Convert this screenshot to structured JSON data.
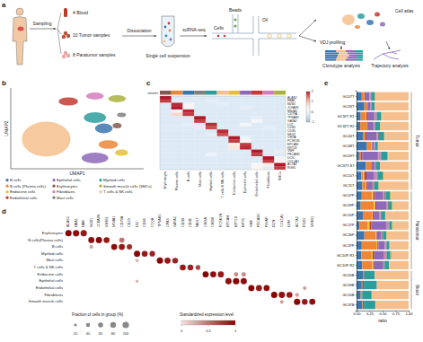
{
  "panel_labels": [
    "a",
    "b",
    "c",
    "d",
    "e"
  ],
  "schematic": {
    "sampling": "Sampling",
    "blood": "4 Blood",
    "tumor": "10 Tumor samples",
    "paratumor": "8 Paratumor samples",
    "dissociation": "Dissociation",
    "suspension": "Single cell suspension",
    "scrnaseq": "scRNA-seq",
    "beads": "Beads",
    "cells": "Cells",
    "oil": "Oil",
    "cell_atlas": "Cell atlas",
    "vdj": "VDJ profiling",
    "clonotype": "Clonotype analysis",
    "trajectory": "Trajectory analysis"
  },
  "chart_data": [
    {
      "type": "scatter",
      "x_label": "UMAP1",
      "y_label": "UMAP2",
      "xlim": [
        -15,
        15
      ],
      "ylim": [
        -15,
        15
      ],
      "tick_labels": false,
      "legend": "bottom",
      "clusters": [
        {
          "name": "B cells",
          "color": "#3b75af",
          "x": 6,
          "y": 0,
          "rx": 2,
          "ry": 1.8
        },
        {
          "name": "B cells (Plasma cells)",
          "color": "#ef8636",
          "x": 7,
          "y": -6,
          "rx": 2.2,
          "ry": 1.6
        },
        {
          "name": "Endocrine cells",
          "color": "#e6c229",
          "x": 10,
          "y": -9,
          "rx": 1.5,
          "ry": 1.2
        },
        {
          "name": "Endothelial cells",
          "color": "#c53a32",
          "x": -2,
          "y": 10,
          "rx": 2.2,
          "ry": 1.5
        },
        {
          "name": "Epithelial cells",
          "color": "#8d69b8",
          "x": 4,
          "y": -11,
          "rx": 3,
          "ry": 2
        },
        {
          "name": "Erythrocytes",
          "color": "#84584e",
          "x": 9,
          "y": 1,
          "rx": 1,
          "ry": 1
        },
        {
          "name": "Fibroblasts",
          "color": "#d57dbf",
          "x": 4,
          "y": 12,
          "rx": 2,
          "ry": 1.3
        },
        {
          "name": "Mast cells",
          "color": "#7f7f7f",
          "x": 10,
          "y": 5,
          "rx": 1,
          "ry": 0.8
        },
        {
          "name": "Myeloid cells",
          "color": "#2d9c9c",
          "x": 4,
          "y": 4,
          "rx": 2.5,
          "ry": 2
        },
        {
          "name": "Smooth muscle cells (SMCs)",
          "color": "#aab23d",
          "x": 9,
          "y": 11,
          "rx": 2,
          "ry": 1.3
        },
        {
          "name": "T cells & NK cells",
          "color": "#f5c08e",
          "x": -7,
          "y": -4,
          "rx": 5.5,
          "ry": 6.5
        }
      ]
    },
    {
      "type": "heatmap",
      "band_label": "cluster",
      "categories": [
        "Erythrocyte",
        "Plasma cells",
        "B cells",
        "Mast cells",
        "Myeloid cells",
        "T cells & NK cells",
        "Endocrine cells",
        "Epithelial cells",
        "Endothelial cells",
        "Fibroblasts",
        "SMCs"
      ],
      "colors": [
        "#84584e",
        "#ef8636",
        "#3b75af",
        "#7f7f7f",
        "#2d9c9c",
        "#f5c08e",
        "#e6c229",
        "#8d69b8",
        "#c53a32",
        "#d57dbf",
        "#aab23d"
      ],
      "genes": [
        "ALAS2",
        "HBA1",
        "MZB1",
        "JCHAIN",
        "MS4A1",
        "CD79A",
        "TPSAB1",
        "GATA2",
        "LYZ",
        "CD68",
        "CD3D",
        "NKG7",
        "CHGA",
        "PCSK1N",
        "EPCAM",
        "KRT18",
        "VWF",
        "PECAM1",
        "DCN",
        "COL1A1",
        "ACTA2",
        "RGS5"
      ],
      "cells": [
        [
          2.0,
          -0.3,
          -0.3,
          -0.3,
          -0.3,
          -0.3,
          -0.3,
          -0.3,
          -0.3,
          -0.3,
          -0.3
        ],
        [
          1.8,
          -0.2,
          -0.3,
          -0.3,
          -0.2,
          -0.3,
          -0.3,
          -0.3,
          -0.3,
          -0.3,
          -0.3
        ],
        [
          -0.3,
          1.9,
          0.4,
          -0.3,
          -0.3,
          -0.2,
          -0.3,
          -0.3,
          -0.3,
          -0.3,
          -0.3
        ],
        [
          -0.3,
          2.0,
          0.1,
          -0.3,
          -0.3,
          -0.3,
          -0.3,
          -0.2,
          -0.3,
          -0.3,
          -0.3
        ],
        [
          -0.3,
          -0.1,
          1.9,
          -0.3,
          -0.3,
          -0.3,
          -0.3,
          -0.3,
          -0.3,
          -0.3,
          -0.3
        ],
        [
          -0.3,
          0.8,
          1.8,
          -0.3,
          -0.3,
          -0.3,
          -0.3,
          -0.3,
          -0.3,
          -0.3,
          -0.3
        ],
        [
          -0.3,
          -0.3,
          -0.3,
          2.0,
          -0.3,
          -0.3,
          -0.3,
          -0.3,
          -0.2,
          -0.3,
          -0.3
        ],
        [
          -0.3,
          -0.3,
          -0.3,
          1.8,
          -0.3,
          -0.3,
          -0.3,
          -0.3,
          0.2,
          -0.3,
          -0.3
        ],
        [
          -0.3,
          -0.3,
          -0.2,
          -0.3,
          1.9,
          -0.3,
          -0.3,
          0.1,
          -0.3,
          -0.3,
          -0.3
        ],
        [
          -0.3,
          -0.3,
          -0.3,
          -0.2,
          1.7,
          -0.3,
          -0.3,
          -0.3,
          -0.3,
          -0.2,
          -0.3
        ],
        [
          -0.3,
          -0.3,
          -0.3,
          -0.3,
          -0.3,
          1.9,
          -0.3,
          -0.3,
          -0.3,
          -0.3,
          -0.3
        ],
        [
          -0.3,
          -0.3,
          -0.3,
          -0.3,
          -0.2,
          1.7,
          -0.3,
          -0.3,
          -0.3,
          -0.3,
          -0.3
        ],
        [
          -0.3,
          -0.3,
          -0.3,
          -0.3,
          -0.3,
          -0.3,
          2.0,
          -0.1,
          -0.3,
          -0.3,
          -0.3
        ],
        [
          -0.3,
          -0.3,
          -0.3,
          -0.3,
          -0.3,
          -0.3,
          1.8,
          0.3,
          -0.3,
          -0.3,
          -0.3
        ],
        [
          -0.3,
          -0.3,
          -0.3,
          -0.3,
          -0.3,
          -0.3,
          0.5,
          1.8,
          -0.3,
          -0.3,
          -0.3
        ],
        [
          -0.3,
          -0.3,
          -0.3,
          -0.3,
          -0.3,
          -0.3,
          0.6,
          1.9,
          -0.3,
          -0.3,
          -0.3
        ],
        [
          -0.3,
          -0.3,
          -0.3,
          -0.3,
          -0.3,
          -0.3,
          -0.3,
          -0.3,
          2.0,
          -0.3,
          -0.2
        ],
        [
          -0.3,
          -0.3,
          -0.3,
          -0.3,
          -0.1,
          -0.3,
          -0.3,
          -0.3,
          1.8,
          -0.3,
          -0.3
        ],
        [
          -0.3,
          -0.3,
          -0.3,
          -0.3,
          -0.3,
          -0.3,
          -0.3,
          -0.3,
          -0.3,
          2.0,
          0.1
        ],
        [
          -0.3,
          -0.3,
          -0.3,
          -0.3,
          -0.3,
          -0.3,
          -0.3,
          -0.3,
          -0.3,
          1.8,
          0.3
        ],
        [
          -0.3,
          -0.3,
          -0.3,
          -0.3,
          -0.3,
          -0.3,
          -0.3,
          -0.3,
          0.2,
          0.5,
          2.0
        ],
        [
          -0.3,
          -0.3,
          -0.3,
          -0.3,
          -0.3,
          -0.3,
          -0.3,
          -0.3,
          0.4,
          -0.2,
          1.8
        ]
      ],
      "colorbar": {
        "range": [
          -1,
          2
        ],
        "ticks": [
          -1,
          0,
          1,
          2
        ]
      }
    },
    {
      "type": "dot",
      "rows": [
        "Erythrocytes",
        "B cells(Plasma cells)",
        "B cells",
        "Myeloid cells",
        "Mast cells",
        "T cells & NK cells",
        "Endocrine cells",
        "Epithelial cells",
        "Endothelial cells",
        "Fibroblasts",
        "Smooth muscle cells"
      ],
      "genes": [
        "ALAS2",
        "HBA1",
        "HBB",
        "MZB1",
        "JCHAIN",
        "IGHG1",
        "MS4A1",
        "CD79A",
        "CD19",
        "LYZ",
        "CD68",
        "C1QA",
        "TPSAB1",
        "CPA3",
        "GATA2",
        "CD3D",
        "CD3E",
        "NKG7",
        "CHGA",
        "CHGB",
        "PCSK1N",
        "EPCAM",
        "KRT18",
        "KRT8",
        "VWF",
        "PECAM1",
        "PLVAP",
        "DCN",
        "COL1A1",
        "LUM",
        "ACTA2",
        "RGS5",
        "MYH11"
      ],
      "dots": [
        [
          0,
          0,
          95,
          1.0
        ],
        [
          0,
          1,
          98,
          0.95
        ],
        [
          0,
          2,
          97,
          0.9
        ],
        [
          1,
          3,
          90,
          0.95
        ],
        [
          1,
          4,
          92,
          1.0
        ],
        [
          1,
          5,
          85,
          0.9
        ],
        [
          1,
          7,
          60,
          0.5
        ],
        [
          2,
          6,
          88,
          0.95
        ],
        [
          2,
          7,
          90,
          0.9
        ],
        [
          2,
          8,
          70,
          0.8
        ],
        [
          2,
          3,
          30,
          0.3
        ],
        [
          3,
          9,
          92,
          1.0
        ],
        [
          3,
          10,
          85,
          0.9
        ],
        [
          3,
          11,
          75,
          0.85
        ],
        [
          4,
          12,
          95,
          1.0
        ],
        [
          4,
          13,
          88,
          0.9
        ],
        [
          4,
          14,
          80,
          0.85
        ],
        [
          4,
          9,
          25,
          0.2
        ],
        [
          5,
          15,
          85,
          0.9
        ],
        [
          5,
          16,
          80,
          0.85
        ],
        [
          5,
          17,
          55,
          0.7
        ],
        [
          6,
          18,
          90,
          1.0
        ],
        [
          6,
          19,
          85,
          0.95
        ],
        [
          6,
          20,
          88,
          0.9
        ],
        [
          6,
          22,
          40,
          0.4
        ],
        [
          6,
          23,
          45,
          0.4
        ],
        [
          7,
          21,
          92,
          0.95
        ],
        [
          7,
          22,
          95,
          1.0
        ],
        [
          7,
          23,
          93,
          0.95
        ],
        [
          7,
          9,
          20,
          0.2
        ],
        [
          8,
          24,
          90,
          1.0
        ],
        [
          8,
          25,
          88,
          0.9
        ],
        [
          8,
          26,
          85,
          0.95
        ],
        [
          8,
          31,
          30,
          0.3
        ],
        [
          9,
          27,
          95,
          1.0
        ],
        [
          9,
          28,
          93,
          0.95
        ],
        [
          9,
          29,
          85,
          0.9
        ],
        [
          9,
          30,
          35,
          0.3
        ],
        [
          10,
          30,
          95,
          1.0
        ],
        [
          10,
          31,
          80,
          0.9
        ],
        [
          10,
          32,
          85,
          0.95
        ],
        [
          10,
          28,
          30,
          0.3
        ]
      ],
      "size_legend": {
        "title": "Fraction of cells in group (%)",
        "values": [
          20,
          40,
          60,
          80,
          100
        ]
      },
      "color_legend": {
        "title": "Standardized expression level",
        "range": [
          0,
          1
        ],
        "ticks": [
          0,
          0.5,
          1
        ]
      }
    },
    {
      "type": "bar",
      "orientation": "horizontal",
      "stacked": true,
      "x_label": "ratio",
      "xlim": [
        0,
        1
      ],
      "xticks": [
        {
          "value": 0,
          "label": "0.00"
        },
        {
          "value": 0.25,
          "label": "0.25"
        },
        {
          "value": 0.5,
          "label": "0.50"
        },
        {
          "value": 0.75,
          "label": "0.75"
        },
        {
          "value": 1,
          "label": "1.00"
        }
      ],
      "categories": [
        "GC07T",
        "GC26T",
        "GC32T-R1",
        "GC32T-R2",
        "GC44T",
        "GC48T",
        "GC09T",
        "GC37T-S7",
        "GC10T",
        "GC11T",
        "GC07P",
        "GC09P",
        "GC10P",
        "GC17P",
        "GC26P",
        "GC37P",
        "GC10P-R1",
        "GC10P-R2",
        "GC05B",
        "GC09B",
        "GC10B",
        "GC37B"
      ],
      "groups": [
        {
          "name": "Tumor",
          "count": 10
        },
        {
          "name": "Paratumor",
          "count": 8
        },
        {
          "name": "Blood",
          "count": 4
        }
      ],
      "series": [
        {
          "name": "B cells",
          "color": "#3b75af",
          "values": [
            0.1,
            0.15,
            0.08,
            0.07,
            0.12,
            0.2,
            0.05,
            0.18,
            0.09,
            0.11,
            0.1,
            0.08,
            0.12,
            0.06,
            0.15,
            0.1,
            0.09,
            0.11,
            0.12,
            0.1,
            0.08,
            0.11
          ]
        },
        {
          "name": "B cells (Plasma cells)",
          "color": "#ef8636",
          "values": [
            0.04,
            0.06,
            0.1,
            0.12,
            0.05,
            0.08,
            0.03,
            0.1,
            0.04,
            0.07,
            0.2,
            0.25,
            0.18,
            0.15,
            0.22,
            0.28,
            0.2,
            0.19,
            0.01,
            0.01,
            0.02,
            0.01
          ]
        },
        {
          "name": "Endocrine cells",
          "color": "#e6c229",
          "values": [
            0.01,
            0,
            0.01,
            0.01,
            0,
            0.01,
            0,
            0,
            0.02,
            0.01,
            0.02,
            0.03,
            0.01,
            0.04,
            0.01,
            0.02,
            0.02,
            0.02,
            0,
            0,
            0,
            0
          ]
        },
        {
          "name": "Endothelial cells",
          "color": "#c53a32",
          "values": [
            0.02,
            0.01,
            0.03,
            0.02,
            0.02,
            0.01,
            0.03,
            0.01,
            0.04,
            0.02,
            0.03,
            0.02,
            0.02,
            0.03,
            0.01,
            0.02,
            0.03,
            0.02,
            0,
            0,
            0,
            0
          ]
        },
        {
          "name": "Epithelial cells",
          "color": "#8d69b8",
          "values": [
            0.08,
            0.05,
            0.12,
            0.1,
            0.2,
            0.04,
            0.3,
            0.06,
            0.15,
            0.09,
            0.15,
            0.2,
            0.1,
            0.3,
            0.08,
            0.12,
            0.18,
            0.16,
            0,
            0,
            0,
            0
          ]
        },
        {
          "name": "Erythrocytes",
          "color": "#84584e",
          "values": [
            0,
            0,
            0.01,
            0.01,
            0,
            0,
            0.01,
            0,
            0,
            0.01,
            0,
            0,
            0.01,
            0,
            0,
            0,
            0.01,
            0,
            0.02,
            0.03,
            0.01,
            0.02
          ]
        },
        {
          "name": "Fibroblasts",
          "color": "#d57dbf",
          "values": [
            0.02,
            0.01,
            0.03,
            0.02,
            0.02,
            0.01,
            0.04,
            0.01,
            0.05,
            0.02,
            0.03,
            0.02,
            0.02,
            0.03,
            0.01,
            0.02,
            0.03,
            0.02,
            0,
            0,
            0,
            0
          ]
        },
        {
          "name": "Mast cells",
          "color": "#7f7f7f",
          "values": [
            0.01,
            0.01,
            0.01,
            0.01,
            0.02,
            0.01,
            0.01,
            0.02,
            0.01,
            0.01,
            0.03,
            0.02,
            0.02,
            0.02,
            0.03,
            0.02,
            0.02,
            0.02,
            0,
            0,
            0,
            0
          ]
        },
        {
          "name": "Myeloid cells",
          "color": "#2d9c9c",
          "values": [
            0.07,
            0.06,
            0.08,
            0.09,
            0.1,
            0.05,
            0.12,
            0.07,
            0.1,
            0.08,
            0.08,
            0.06,
            0.07,
            0.05,
            0.06,
            0.05,
            0.07,
            0.08,
            0.2,
            0.25,
            0.18,
            0.22
          ]
        },
        {
          "name": "Smooth muscle cells (SMCs)",
          "color": "#aab23d",
          "values": [
            0.01,
            0,
            0.02,
            0.01,
            0.01,
            0,
            0.02,
            0,
            0.02,
            0.01,
            0.02,
            0.02,
            0.01,
            0.02,
            0.01,
            0.01,
            0.02,
            0.01,
            0,
            0,
            0,
            0
          ]
        },
        {
          "name": "T cells & NK cells",
          "color": "#f5c08e",
          "values": [
            0.64,
            0.65,
            0.51,
            0.54,
            0.46,
            0.59,
            0.39,
            0.55,
            0.48,
            0.57,
            0.34,
            0.3,
            0.44,
            0.3,
            0.42,
            0.36,
            0.33,
            0.37,
            0.65,
            0.61,
            0.71,
            0.64
          ]
        }
      ]
    }
  ]
}
